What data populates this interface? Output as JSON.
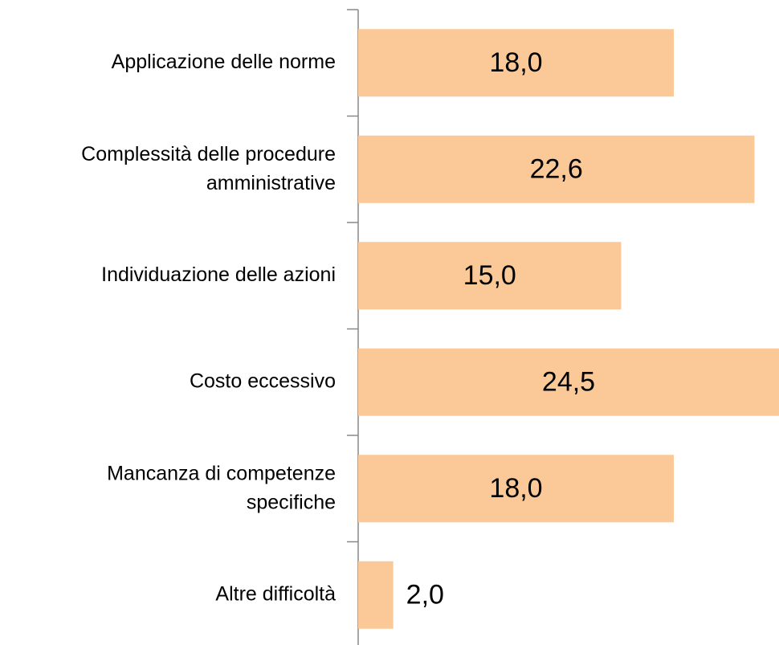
{
  "chart_data": {
    "type": "bar",
    "orientation": "horizontal",
    "categories": [
      "Applicazione delle norme",
      "Complessità delle procedure\namministrative",
      "Individuazione delle azioni",
      "Costo eccessivo",
      "Mancanza di competenze\nspecifiche",
      "Altre difficoltà"
    ],
    "values": [
      18.0,
      22.6,
      15.0,
      24.5,
      18.0,
      2.0
    ],
    "value_labels": [
      "18,0",
      "22,6",
      "15,0",
      "24,5",
      "18,0",
      "2,0"
    ],
    "color": "#fbc897",
    "xlim": [
      0,
      24
    ]
  }
}
